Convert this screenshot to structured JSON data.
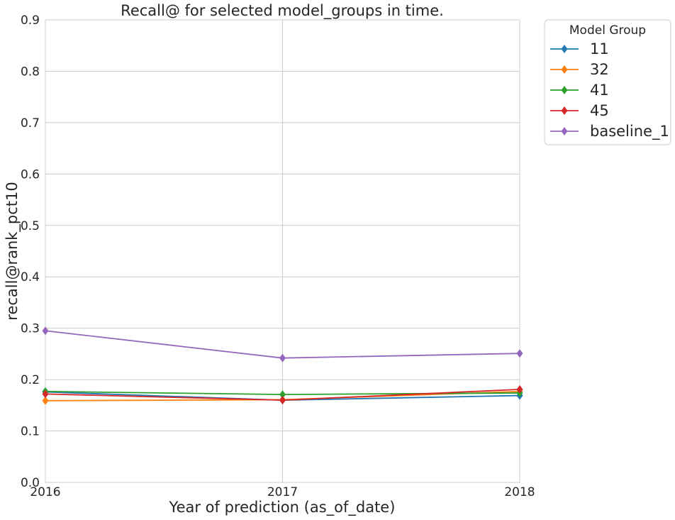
{
  "chart_data": {
    "type": "line",
    "title": "Recall@ for selected model_groups in time.",
    "xlabel": "Year of prediction (as_of_date)",
    "ylabel": "recall@rank_pct10",
    "x": [
      "2016",
      "2017",
      "2018"
    ],
    "yticks": [
      "0.0",
      "0.1",
      "0.2",
      "0.3",
      "0.4",
      "0.5",
      "0.6",
      "0.7",
      "0.8",
      "0.9"
    ],
    "ylim": [
      0,
      0.9
    ],
    "grid": true,
    "marker": "diamond",
    "legend": {
      "title": "Model Group",
      "placement": "outside-top-right"
    },
    "series": [
      {
        "name": "11",
        "color": "#1f77b4",
        "values": [
          0.176,
          0.16,
          0.169
        ]
      },
      {
        "name": "32",
        "color": "#ff7f0e",
        "values": [
          0.159,
          0.161,
          0.177
        ]
      },
      {
        "name": "41",
        "color": "#2ca02c",
        "values": [
          0.177,
          0.171,
          0.174
        ]
      },
      {
        "name": "45",
        "color": "#d62728",
        "values": [
          0.172,
          0.16,
          0.181
        ]
      },
      {
        "name": "baseline_1",
        "color": "#9467bd",
        "values": [
          0.295,
          0.242,
          0.251
        ]
      }
    ]
  }
}
